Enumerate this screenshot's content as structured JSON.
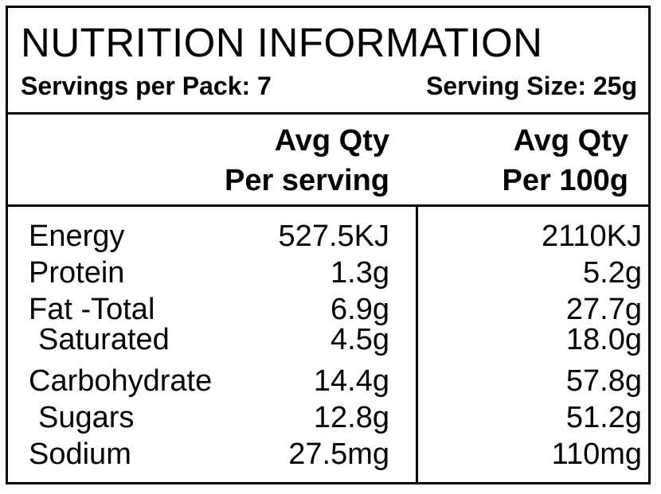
{
  "label": {
    "title": "NUTRITION INFORMATION",
    "servings_per_pack": "Servings per Pack: 7",
    "serving_size": "Serving Size: 25g"
  },
  "columns": {
    "per_serving_line1": "Avg Qty",
    "per_serving_line2": "Per serving",
    "per_100g_line1": "Avg Qty",
    "per_100g_line2": "Per 100g"
  },
  "rows": [
    {
      "name": "Energy",
      "per_serving": "527.5KJ",
      "per_100g": "2110KJ"
    },
    {
      "name": "Protein",
      "per_serving": "1.3g",
      "per_100g": "5.2g"
    },
    {
      "name": "Fat -Total",
      "per_serving": "6.9g",
      "per_100g": "27.7g"
    },
    {
      "name": "Saturated",
      "per_serving": "4.5g",
      "per_100g": "18.0g"
    },
    {
      "name": "Carbohydrate",
      "per_serving": "14.4g",
      "per_100g": "57.8g"
    },
    {
      "name": "Sugars",
      "per_serving": "12.8g",
      "per_100g": "51.2g"
    },
    {
      "name": "Sodium",
      "per_serving": "27.5mg",
      "per_100g": "110mg"
    }
  ]
}
